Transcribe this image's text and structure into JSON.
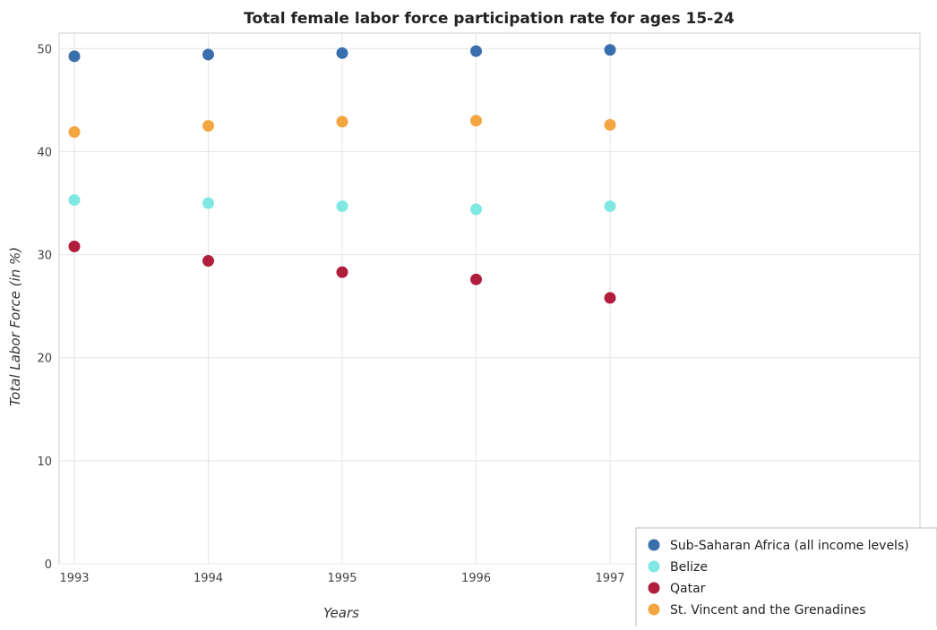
{
  "chart_data": {
    "type": "scatter",
    "title": "Total female labor force participation rate for ages 15-24",
    "xlabel": "Years",
    "ylabel": "Total Labor Force (in %)",
    "categories": [
      "1993",
      "1994",
      "1995",
      "1996",
      "1997"
    ],
    "ylim": [
      0,
      51.5
    ],
    "yticks": [
      0,
      10,
      20,
      30,
      40,
      50
    ],
    "grid": true,
    "legend_position": "bottom-right",
    "series": [
      {
        "name": "Sub-Saharan Africa (all income levels)",
        "color": "#3a6fad",
        "values": [
          49.25,
          49.42,
          49.56,
          49.75,
          49.87
        ]
      },
      {
        "name": "Belize",
        "color": "#7fe8e3",
        "values": [
          35.3,
          35.0,
          34.7,
          34.4,
          34.7
        ]
      },
      {
        "name": "Qatar",
        "color": "#b01e3d",
        "values": [
          30.8,
          29.4,
          28.3,
          27.6,
          25.8
        ]
      },
      {
        "name": "St. Vincent and the Grenadines",
        "color": "#f2a541",
        "values": [
          41.9,
          42.5,
          42.9,
          43.0,
          42.6
        ]
      }
    ]
  }
}
